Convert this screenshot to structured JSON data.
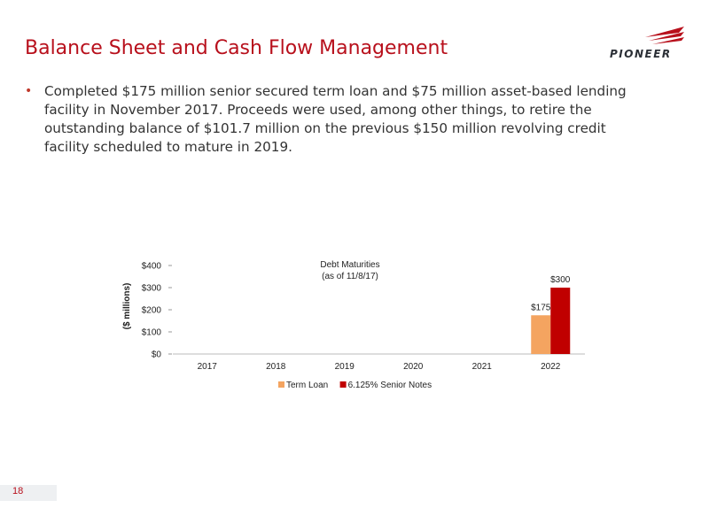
{
  "slide": {
    "title": "Balance Sheet and Cash Flow Management",
    "logo_text": "PIONEER",
    "bullets": [
      {
        "lines": [
          "Completed $175 million senior secured term loan and $75 million asset-based lending",
          "facility in November 2017.  Proceeds were used, among other things, to retire the",
          "outstanding balance of $101.7 million on the previous $150 million revolving credit",
          "facility scheduled to mature in 2019."
        ]
      }
    ],
    "page_number": "18"
  },
  "colors": {
    "title": "#b8101c",
    "term_loan": "#f4a460",
    "senior_notes": "#c00000"
  },
  "chart_data": {
    "type": "bar",
    "title": "Debt Maturities",
    "subtitle": "(as of 11/8/17)",
    "xlabel": "",
    "ylabel": "($ millions)",
    "categories": [
      "2017",
      "2018",
      "2019",
      "2020",
      "2021",
      "2022"
    ],
    "series": [
      {
        "name": "Term Loan",
        "values": [
          0,
          0,
          0,
          0,
          0,
          175
        ],
        "color": "#f4a460"
      },
      {
        "name": "6.125% Senior Notes",
        "values": [
          0,
          0,
          0,
          0,
          0,
          300
        ],
        "color": "#c00000"
      }
    ],
    "data_labels": [
      {
        "series": 0,
        "category": "2022",
        "text": "$175"
      },
      {
        "series": 1,
        "category": "2022",
        "text": "$300"
      }
    ],
    "yticks": [
      0,
      100,
      200,
      300,
      400
    ],
    "ytick_labels": [
      "$0",
      "$100",
      "$200",
      "$300",
      "$400"
    ],
    "ylim": [
      0,
      400
    ],
    "grid": false,
    "legend": "bottom"
  }
}
